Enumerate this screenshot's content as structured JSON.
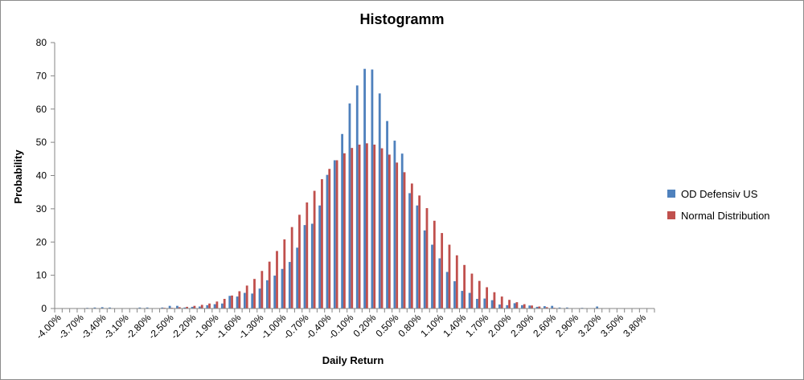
{
  "chart_data": {
    "type": "bar",
    "title": "Histogramm",
    "xlabel": "Daily Return",
    "ylabel": "Probability",
    "ylim": [
      0,
      80
    ],
    "yticks": [
      "0",
      "10",
      "20",
      "30",
      "40",
      "50",
      "60",
      "70",
      "80"
    ],
    "grid": false,
    "legend_position": "right",
    "categories": [
      "-4.00%",
      "-3.90%",
      "-3.80%",
      "-3.70%",
      "-3.60%",
      "-3.50%",
      "-3.40%",
      "-3.30%",
      "-3.20%",
      "-3.10%",
      "-3.00%",
      "-2.90%",
      "-2.80%",
      "-2.70%",
      "-2.60%",
      "-2.50%",
      "-2.40%",
      "-2.30%",
      "-2.20%",
      "-2.10%",
      "-2.00%",
      "-1.90%",
      "-1.80%",
      "-1.70%",
      "-1.60%",
      "-1.50%",
      "-1.40%",
      "-1.30%",
      "-1.20%",
      "-1.10%",
      "-1.00%",
      "-0.90%",
      "-0.80%",
      "-0.70%",
      "-0.60%",
      "-0.50%",
      "-0.40%",
      "-0.30%",
      "-0.20%",
      "-0.10%",
      "0.00%",
      "0.10%",
      "0.20%",
      "0.30%",
      "0.40%",
      "0.50%",
      "0.60%",
      "0.70%",
      "0.80%",
      "0.90%",
      "1.00%",
      "1.10%",
      "1.20%",
      "1.30%",
      "1.40%",
      "1.50%",
      "1.60%",
      "1.70%",
      "1.80%",
      "1.90%",
      "2.00%",
      "2.10%",
      "2.20%",
      "2.30%",
      "2.40%",
      "2.50%",
      "2.60%",
      "2.70%",
      "2.80%",
      "2.90%",
      "3.00%",
      "3.10%",
      "3.20%",
      "3.30%",
      "3.40%",
      "3.50%",
      "3.60%",
      "3.70%",
      "3.80%",
      "3.90%"
    ],
    "xtick_labels": [
      "-4.00%",
      "-3.70%",
      "-3.40%",
      "-3.10%",
      "-2.80%",
      "-2.50%",
      "-2.20%",
      "-1.90%",
      "-1.60%",
      "-1.30%",
      "-1.00%",
      "-0.70%",
      "-0.40%",
      "-0.10%",
      "0.20%",
      "0.50%",
      "0.80%",
      "1.10%",
      "1.40%",
      "1.70%",
      "2.00%",
      "2.30%",
      "2.60%",
      "2.90%",
      "3.20%",
      "3.50%",
      "3.80%"
    ],
    "series": [
      {
        "name": "OD Defensiv US",
        "color": "#4f81bd",
        "values": [
          0,
          0,
          0,
          0,
          0.2,
          0.3,
          0.4,
          0.3,
          0,
          0,
          0,
          0.3,
          0.3,
          0,
          0.3,
          0.8,
          0.8,
          0.3,
          0.5,
          0.6,
          1,
          1.3,
          1.5,
          3.8,
          3.6,
          4.7,
          4.5,
          6,
          8.5,
          9.9,
          11.9,
          14,
          18.3,
          25.1,
          25.5,
          31,
          40.2,
          44.6,
          52.5,
          61.7,
          67.1,
          72.1,
          71.9,
          64.7,
          56.4,
          50.5,
          46.6,
          34.7,
          31,
          23.5,
          19.2,
          15.1,
          11,
          8.2,
          5.3,
          4.7,
          2.9,
          3,
          2.5,
          1.2,
          1,
          1.6,
          1,
          0.9,
          0.5,
          0.7,
          0.8,
          0.3,
          0.3,
          0,
          0.2,
          0,
          0.6,
          0,
          0,
          0,
          0,
          0,
          0,
          0
        ]
      },
      {
        "name": "Normal Distribution",
        "color": "#c0504d",
        "values": [
          0,
          0,
          0,
          0,
          0,
          0,
          0,
          0,
          0,
          0,
          0,
          0,
          0,
          0.1,
          0.2,
          0.2,
          0.4,
          0.5,
          0.8,
          1.1,
          1.5,
          2.1,
          2.9,
          3.9,
          5.2,
          6.9,
          8.9,
          11.3,
          14.1,
          17.3,
          20.8,
          24.5,
          28.2,
          31.9,
          35.4,
          38.9,
          42,
          44.6,
          46.7,
          48.3,
          49.3,
          49.7,
          49.3,
          48.2,
          46.3,
          43.9,
          41,
          37.6,
          34,
          30.2,
          26.4,
          22.7,
          19.2,
          16,
          13.1,
          10.5,
          8.3,
          6.4,
          4.9,
          3.6,
          2.6,
          1.9,
          1.3,
          0.9,
          0.6,
          0.4,
          0.2,
          0.1,
          0.1,
          0,
          0,
          0,
          0,
          0,
          0,
          0,
          0,
          0,
          0,
          0
        ]
      }
    ]
  }
}
